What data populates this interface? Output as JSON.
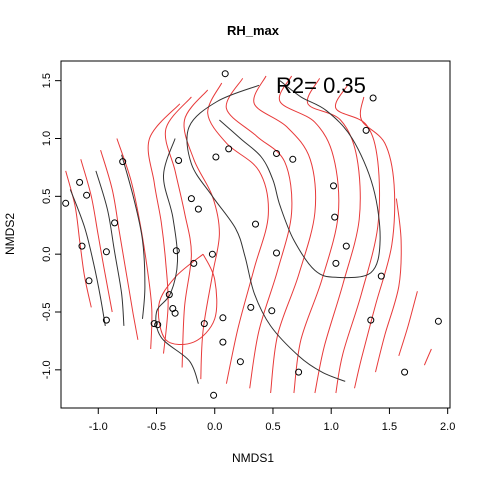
{
  "chart_data": {
    "type": "scatter",
    "title": "RH_max",
    "xlabel": "NMDS1",
    "ylabel": "NMDS2",
    "annotation": "R2= 0.35",
    "xlim": [
      -1.32,
      2.02
    ],
    "ylim": [
      -1.33,
      1.67
    ],
    "xticks": [
      -1.0,
      -0.5,
      0.0,
      0.5,
      1.0,
      1.5,
      2.0
    ],
    "xtick_labels": [
      "-1.0",
      "-0.5",
      "0.0",
      "0.5",
      "1.0",
      "1.5",
      "2.0"
    ],
    "yticks": [
      -1.0,
      -0.5,
      0.0,
      0.5,
      1.0,
      1.5
    ],
    "ytick_labels": [
      "-1.0",
      "-0.5",
      "0.0",
      "0.5",
      "1.0",
      "1.5"
    ],
    "grid": false,
    "colors": {
      "points": "#000000",
      "contour_red": "#e83a3a",
      "contour_black": "#333333"
    },
    "points": [
      {
        "x": 0.09,
        "y": 1.56
      },
      {
        "x": 1.36,
        "y": 1.35
      },
      {
        "x": 1.3,
        "y": 1.07
      },
      {
        "x": -1.16,
        "y": 0.62
      },
      {
        "x": -0.79,
        "y": 0.8
      },
      {
        "x": -0.31,
        "y": 0.81
      },
      {
        "x": 0.01,
        "y": 0.84
      },
      {
        "x": 0.12,
        "y": 0.91
      },
      {
        "x": 0.53,
        "y": 0.87
      },
      {
        "x": 0.67,
        "y": 0.82
      },
      {
        "x": -1.28,
        "y": 0.44
      },
      {
        "x": -1.1,
        "y": 0.51
      },
      {
        "x": -0.2,
        "y": 0.48
      },
      {
        "x": -0.14,
        "y": 0.39
      },
      {
        "x": 1.02,
        "y": 0.59
      },
      {
        "x": 1.03,
        "y": 0.32
      },
      {
        "x": -0.86,
        "y": 0.27
      },
      {
        "x": 0.35,
        "y": 0.26
      },
      {
        "x": -1.14,
        "y": 0.07
      },
      {
        "x": -0.93,
        "y": 0.02
      },
      {
        "x": -0.33,
        "y": 0.03
      },
      {
        "x": -0.02,
        "y": 0.0
      },
      {
        "x": 0.53,
        "y": 0.01
      },
      {
        "x": 1.13,
        "y": 0.07
      },
      {
        "x": -1.08,
        "y": -0.23
      },
      {
        "x": -0.18,
        "y": -0.08
      },
      {
        "x": 1.04,
        "y": -0.08
      },
      {
        "x": 1.43,
        "y": -0.19
      },
      {
        "x": -0.39,
        "y": -0.35
      },
      {
        "x": -0.36,
        "y": -0.47
      },
      {
        "x": -0.34,
        "y": -0.51
      },
      {
        "x": 0.31,
        "y": -0.46
      },
      {
        "x": 0.49,
        "y": -0.49
      },
      {
        "x": -0.93,
        "y": -0.57
      },
      {
        "x": -0.52,
        "y": -0.6
      },
      {
        "x": -0.49,
        "y": -0.61
      },
      {
        "x": -0.09,
        "y": -0.6
      },
      {
        "x": 0.07,
        "y": -0.55
      },
      {
        "x": 1.34,
        "y": -0.57
      },
      {
        "x": 1.92,
        "y": -0.58
      },
      {
        "x": 0.07,
        "y": -0.76
      },
      {
        "x": 0.22,
        "y": -0.93
      },
      {
        "x": 0.72,
        "y": -1.02
      },
      {
        "x": 1.63,
        "y": -1.02
      },
      {
        "x": -0.01,
        "y": -1.22
      }
    ],
    "contours_red": [
      [
        [
          -1.28,
          0.72
        ],
        [
          -1.2,
          0.42
        ],
        [
          -1.16,
          0.12
        ],
        [
          -1.12,
          -0.18
        ],
        [
          -1.06,
          -0.46
        ]
      ],
      [
        [
          -1.15,
          0.82
        ],
        [
          -1.06,
          0.5
        ],
        [
          -1.0,
          0.16
        ],
        [
          -0.94,
          -0.18
        ],
        [
          -0.88,
          -0.5
        ]
      ],
      [
        [
          -0.98,
          0.9
        ],
        [
          -0.88,
          0.56
        ],
        [
          -0.82,
          0.2
        ],
        [
          -0.76,
          -0.16
        ],
        [
          -0.7,
          -0.52
        ],
        [
          -0.66,
          -0.74
        ]
      ],
      [
        [
          -0.84,
          1.0
        ],
        [
          -0.72,
          0.64
        ],
        [
          -0.64,
          0.26
        ],
        [
          -0.58,
          -0.12
        ],
        [
          -0.54,
          -0.48
        ],
        [
          -0.55,
          -0.82
        ]
      ],
      [
        [
          -0.3,
          1.3
        ],
        [
          -0.56,
          1.0
        ],
        [
          -0.52,
          0.62
        ],
        [
          -0.46,
          0.28
        ],
        [
          -0.42,
          -0.08
        ],
        [
          -0.4,
          -0.44
        ],
        [
          -0.44,
          -0.86
        ]
      ],
      [
        [
          -0.2,
          1.36
        ],
        [
          -0.42,
          1.08
        ],
        [
          -0.34,
          0.72
        ],
        [
          -0.26,
          0.36
        ],
        [
          -0.2,
          0.0
        ],
        [
          -0.26,
          -0.46
        ],
        [
          -0.28,
          -0.98
        ]
      ],
      [
        [
          -0.06,
          1.42
        ],
        [
          -0.26,
          1.16
        ],
        [
          -0.18,
          0.82
        ],
        [
          -0.02,
          0.5
        ],
        [
          0.04,
          0.18
        ],
        [
          -0.02,
          -0.18
        ],
        [
          -0.1,
          -0.66
        ],
        [
          -0.12,
          -1.08
        ]
      ],
      [
        [
          -0.1,
          0.0
        ],
        [
          -0.34,
          -0.2
        ],
        [
          -0.48,
          -0.44
        ],
        [
          -0.42,
          -0.74
        ],
        [
          -0.18,
          -0.76
        ],
        [
          0.0,
          -0.56
        ],
        [
          0.0,
          -0.22
        ],
        [
          -0.1,
          0.0
        ]
      ],
      [
        [
          0.06,
          1.48
        ],
        [
          -0.06,
          1.22
        ],
        [
          0.1,
          0.96
        ],
        [
          0.38,
          0.72
        ],
        [
          0.46,
          0.34
        ],
        [
          0.34,
          -0.12
        ],
        [
          0.2,
          -0.64
        ],
        [
          0.1,
          -1.12
        ]
      ],
      [
        [
          0.24,
          1.52
        ],
        [
          0.1,
          1.26
        ],
        [
          0.36,
          1.02
        ],
        [
          0.6,
          0.8
        ],
        [
          0.66,
          0.36
        ],
        [
          0.54,
          -0.14
        ],
        [
          0.38,
          -0.66
        ],
        [
          0.3,
          -1.16
        ]
      ],
      [
        [
          0.44,
          1.54
        ],
        [
          0.34,
          1.3
        ],
        [
          0.62,
          1.1
        ],
        [
          0.82,
          0.82
        ],
        [
          0.86,
          0.36
        ],
        [
          0.72,
          -0.18
        ],
        [
          0.54,
          -0.7
        ],
        [
          0.48,
          -1.2
        ]
      ],
      [
        [
          0.66,
          1.54
        ],
        [
          0.56,
          1.32
        ],
        [
          0.86,
          1.14
        ],
        [
          1.02,
          0.84
        ],
        [
          1.06,
          0.34
        ],
        [
          0.92,
          -0.22
        ],
        [
          0.74,
          -0.74
        ],
        [
          0.68,
          -1.2
        ]
      ],
      [
        [
          0.9,
          1.52
        ],
        [
          0.8,
          1.3
        ],
        [
          1.08,
          1.16
        ],
        [
          1.22,
          0.84
        ],
        [
          1.24,
          0.3
        ],
        [
          1.1,
          -0.26
        ],
        [
          0.94,
          -0.8
        ],
        [
          0.86,
          -1.2
        ]
      ],
      [
        [
          1.14,
          1.46
        ],
        [
          1.04,
          1.26
        ],
        [
          1.3,
          1.12
        ],
        [
          1.4,
          0.8
        ],
        [
          1.4,
          0.24
        ],
        [
          1.26,
          -0.34
        ],
        [
          1.1,
          -0.86
        ],
        [
          1.04,
          -1.2
        ]
      ],
      [
        [
          1.28,
          1.36
        ],
        [
          1.26,
          1.16
        ],
        [
          1.46,
          0.96
        ],
        [
          1.54,
          0.6
        ],
        [
          1.52,
          0.08
        ],
        [
          1.38,
          -0.44
        ],
        [
          1.26,
          -0.9
        ],
        [
          1.2,
          -1.16
        ]
      ],
      [
        [
          1.56,
          0.48
        ],
        [
          1.6,
          0.12
        ],
        [
          1.58,
          -0.28
        ],
        [
          1.46,
          -0.7
        ],
        [
          1.38,
          -1.02
        ]
      ],
      [
        [
          1.74,
          -0.32
        ],
        [
          1.66,
          -0.62
        ],
        [
          1.58,
          -0.88
        ]
      ],
      [
        [
          1.86,
          -0.82
        ],
        [
          1.8,
          -0.96
        ]
      ]
    ],
    "contours_black": [
      [
        [
          -1.24,
          0.56
        ],
        [
          -1.12,
          0.24
        ],
        [
          -1.04,
          -0.08
        ],
        [
          -0.98,
          -0.38
        ],
        [
          -0.94,
          -0.62
        ]
      ],
      [
        [
          -1.02,
          0.72
        ],
        [
          -0.92,
          0.38
        ],
        [
          -0.86,
          0.02
        ],
        [
          -0.8,
          -0.34
        ],
        [
          -0.78,
          -0.62
        ]
      ],
      [
        [
          -0.8,
          0.86
        ],
        [
          -0.7,
          0.5
        ],
        [
          -0.62,
          0.12
        ],
        [
          -0.6,
          -0.28
        ],
        [
          -0.62,
          -0.56
        ]
      ],
      [
        [
          -0.34,
          1.0
        ],
        [
          -0.44,
          0.68
        ],
        [
          -0.36,
          0.32
        ],
        [
          -0.32,
          -0.06
        ],
        [
          -0.38,
          -0.34
        ],
        [
          -0.5,
          -0.5
        ],
        [
          -0.46,
          -0.72
        ],
        [
          -0.22,
          -0.92
        ],
        [
          -0.14,
          -1.12
        ]
      ],
      [
        [
          0.38,
          1.46
        ],
        [
          0.02,
          1.32
        ],
        [
          -0.22,
          1.1
        ],
        [
          -0.2,
          0.78
        ],
        [
          -0.02,
          0.5
        ],
        [
          0.18,
          0.22
        ],
        [
          0.26,
          -0.02
        ],
        [
          0.34,
          -0.34
        ],
        [
          0.48,
          -0.62
        ],
        [
          0.72,
          -0.88
        ],
        [
          0.92,
          -1.02
        ],
        [
          1.12,
          -1.1
        ]
      ],
      [
        [
          0.56,
          1.5
        ],
        [
          0.74,
          1.36
        ],
        [
          0.96,
          1.24
        ],
        [
          1.18,
          1.0
        ],
        [
          1.36,
          0.58
        ],
        [
          1.42,
          0.12
        ],
        [
          1.34,
          -0.16
        ],
        [
          1.04,
          -0.2
        ],
        [
          0.86,
          -0.14
        ],
        [
          0.68,
          0.12
        ],
        [
          0.56,
          0.42
        ],
        [
          0.5,
          0.64
        ],
        [
          0.4,
          0.84
        ],
        [
          0.22,
          1.0
        ],
        [
          0.04,
          1.16
        ]
      ]
    ]
  }
}
